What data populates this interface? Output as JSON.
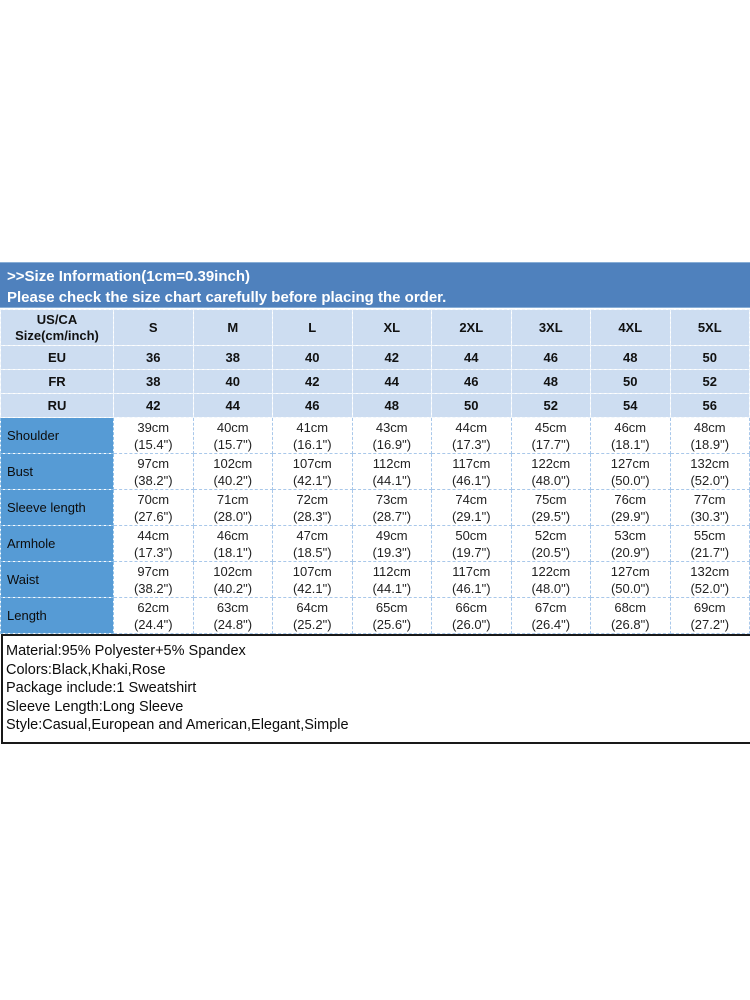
{
  "banner": {
    "line1": ">>Size Information(1cm=0.39inch)",
    "line2": "Please check the size chart carefully before placing the order."
  },
  "table": {
    "corner": "US/CA\nSize(cm/inch)",
    "size_headers": [
      "S",
      "M",
      "L",
      "XL",
      "2XL",
      "3XL",
      "4XL",
      "5XL"
    ],
    "region_rows": [
      {
        "label": "EU",
        "values": [
          "36",
          "38",
          "40",
          "42",
          "44",
          "46",
          "48",
          "50"
        ]
      },
      {
        "label": "FR",
        "values": [
          "38",
          "40",
          "42",
          "44",
          "46",
          "48",
          "50",
          "52"
        ]
      },
      {
        "label": "RU",
        "values": [
          "42",
          "44",
          "46",
          "48",
          "50",
          "52",
          "54",
          "56"
        ]
      }
    ],
    "measurement_rows": [
      {
        "label": "Shoulder",
        "values": [
          "39cm\n(15.4\")",
          "40cm\n(15.7\")",
          "41cm\n(16.1\")",
          "43cm\n(16.9\")",
          "44cm\n(17.3\")",
          "45cm\n(17.7\")",
          "46cm\n(18.1\")",
          "48cm\n(18.9\")"
        ]
      },
      {
        "label": "Bust",
        "values": [
          "97cm\n(38.2\")",
          "102cm\n(40.2\")",
          "107cm\n(42.1\")",
          "112cm\n(44.1\")",
          "117cm\n(46.1\")",
          "122cm\n(48.0\")",
          "127cm\n(50.0\")",
          "132cm\n(52.0\")"
        ]
      },
      {
        "label": "Sleeve length",
        "values": [
          "70cm\n(27.6\")",
          "71cm\n(28.0\")",
          "72cm\n(28.3\")",
          "73cm\n(28.7\")",
          "74cm\n(29.1\")",
          "75cm\n(29.5\")",
          "76cm\n(29.9\")",
          "77cm\n(30.3\")"
        ]
      },
      {
        "label": "Armhole",
        "values": [
          "44cm\n(17.3\")",
          "46cm\n(18.1\")",
          "47cm\n(18.5\")",
          "49cm\n(19.3\")",
          "50cm\n(19.7\")",
          "52cm\n(20.5\")",
          "53cm\n(20.9\")",
          "55cm\n(21.7\")"
        ]
      },
      {
        "label": "Waist",
        "values": [
          "97cm\n(38.2\")",
          "102cm\n(40.2\")",
          "107cm\n(42.1\")",
          "112cm\n(44.1\")",
          "117cm\n(46.1\")",
          "122cm\n(48.0\")",
          "127cm\n(50.0\")",
          "132cm\n(52.0\")"
        ]
      },
      {
        "label": "Length",
        "values": [
          "62cm\n(24.4\")",
          "63cm\n(24.8\")",
          "64cm\n(25.2\")",
          "65cm\n(25.6\")",
          "66cm\n(26.0\")",
          "67cm\n(26.4\")",
          "68cm\n(26.8\")",
          "69cm\n(27.2\")"
        ]
      }
    ]
  },
  "details": {
    "lines": [
      "Material:95% Polyester+5% Spandex",
      "Colors:Black,Khaki,Rose",
      "Package include:1 Sweatshirt",
      "Sleeve Length:Long Sleeve",
      "Style:Casual,European and American,Elegant,Simple"
    ]
  },
  "colors": {
    "banner_blue": "#4f81bd",
    "light_blue_row": "#cdddf1",
    "label_column_blue": "#569bd5",
    "cell_border_blue": "#a9c8ea",
    "details_border": "#191919"
  }
}
